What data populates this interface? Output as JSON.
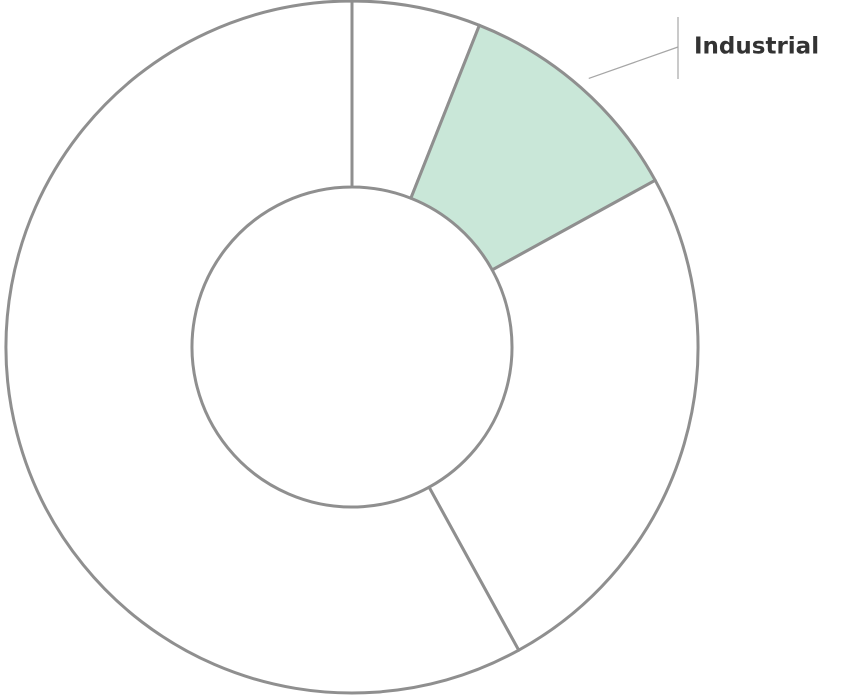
{
  "chart_data": {
    "type": "donut",
    "categories": [
      null,
      "Industrial",
      null,
      null
    ],
    "values": [
      6,
      11,
      25,
      58
    ],
    "colors": [
      "#ffffff",
      "#c9e7d8",
      "#ffffff",
      "#ffffff"
    ]
  }
}
